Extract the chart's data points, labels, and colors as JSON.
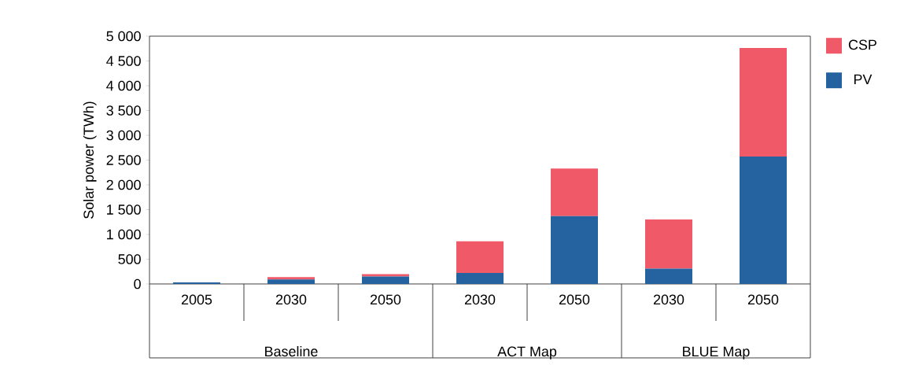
{
  "chart_data": {
    "type": "bar",
    "stacked": true,
    "ylabel": "Solar power (TWh)",
    "categories": [
      "2005",
      "2030",
      "2050",
      "2030",
      "2050",
      "2030",
      "2050"
    ],
    "series": [
      {
        "name": "PV",
        "color": "#2563a0",
        "values": [
          30,
          90,
          150,
          220,
          1370,
          310,
          2570
        ]
      },
      {
        "name": "CSP",
        "color": "#f05a68",
        "values": [
          0,
          50,
          50,
          640,
          960,
          990,
          2190
        ]
      }
    ],
    "ylim": [
      0,
      5000
    ],
    "yticks": [
      0,
      500,
      {
        "value": 1000,
        "label": "1 000"
      },
      {
        "value": 1500,
        "label": "1 500"
      },
      {
        "value": 2000,
        "label": "2 000"
      },
      {
        "value": 2500,
        "label": "2 500"
      },
      {
        "value": 3000,
        "label": "3 000"
      },
      {
        "value": 3500,
        "label": "3 500"
      },
      {
        "value": 4000,
        "label": "4 000"
      },
      {
        "value": 4500,
        "label": "4 500"
      },
      {
        "value": 5000,
        "label": "5 000"
      }
    ],
    "annotations": [
      "Baseline",
      "ACT Map",
      "BLUE Map"
    ],
    "legend": "top right",
    "grid": false
  }
}
